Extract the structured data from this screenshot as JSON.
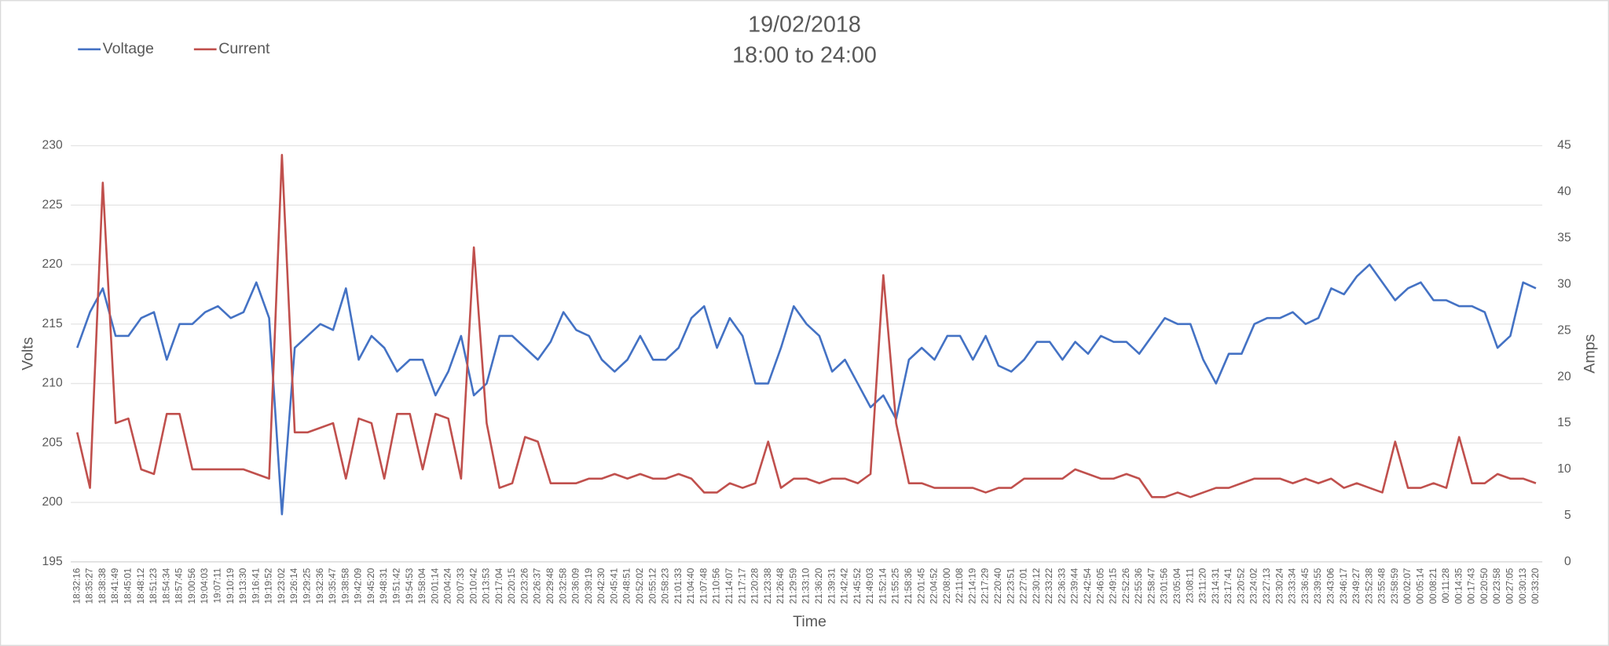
{
  "chart_data": {
    "type": "line",
    "title": "19/02/2018",
    "subtitle": "18:00 to 24:00",
    "x_label": "Time",
    "y_label": "Volts",
    "y2_label": "Amps",
    "ylim": [
      195,
      230
    ],
    "yticks": [
      195,
      200,
      205,
      210,
      215,
      220,
      225,
      230
    ],
    "y2lim": [
      0,
      45
    ],
    "y2ticks": [
      0,
      5,
      10,
      15,
      20,
      25,
      30,
      35,
      40,
      45
    ],
    "grid": true,
    "legend": "top-left",
    "categories": [
      "18:32:16",
      "18:35:27",
      "18:38:38",
      "18:41:49",
      "18:45:01",
      "18:48:12",
      "18:51:23",
      "18:54:34",
      "18:57:45",
      "19:00:56",
      "19:04:03",
      "19:07:11",
      "19:10:19",
      "19:13:30",
      "19:16:41",
      "19:19:52",
      "19:23:02",
      "19:26:14",
      "19:29:25",
      "19:32:36",
      "19:35:47",
      "19:38:58",
      "19:42:09",
      "19:45:20",
      "19:48:31",
      "19:51:42",
      "19:54:53",
      "19:58:04",
      "20:01:14",
      "20:04:24",
      "20:07:33",
      "20:10:42",
      "20:13:53",
      "20:17:04",
      "20:20:15",
      "20:23:26",
      "20:26:37",
      "20:29:48",
      "20:32:58",
      "20:36:09",
      "20:39:19",
      "20:42:30",
      "20:45:41",
      "20:48:51",
      "20:52:02",
      "20:55:12",
      "20:58:23",
      "21:01:33",
      "21:04:40",
      "21:07:48",
      "21:10:56",
      "21:14:07",
      "21:17:17",
      "21:20:28",
      "21:23:38",
      "21:26:48",
      "21:29:59",
      "21:33:10",
      "21:36:20",
      "21:39:31",
      "21:42:42",
      "21:45:52",
      "21:49:03",
      "21:52:14",
      "21:55:25",
      "21:58:36",
      "22:01:45",
      "22:04:52",
      "22:08:00",
      "22:11:08",
      "22:14:19",
      "22:17:29",
      "22:20:40",
      "22:23:51",
      "22:27:01",
      "22:30:12",
      "22:33:22",
      "22:36:33",
      "22:39:44",
      "22:42:54",
      "22:46:05",
      "22:49:15",
      "22:52:26",
      "22:55:36",
      "22:58:47",
      "23:01:56",
      "23:05:04",
      "23:08:11",
      "23:11:20",
      "23:14:31",
      "23:17:41",
      "23:20:52",
      "23:24:02",
      "23:27:13",
      "23:30:24",
      "23:33:34",
      "23:36:45",
      "23:39:55",
      "23:43:06",
      "23:46:17",
      "23:49:27",
      "23:52:38",
      "23:55:48",
      "23:58:59",
      "00:02:07",
      "00:05:14",
      "00:08:21",
      "00:11:28",
      "00:14:35",
      "00:17:43",
      "00:20:50",
      "00:23:58",
      "00:27:05",
      "00:30:13",
      "00:33:20"
    ],
    "series": [
      {
        "name": "Voltage",
        "color": "#4472c4",
        "axis": "y",
        "values": [
          213,
          216,
          218,
          214,
          214,
          215.5,
          216,
          212,
          215,
          215,
          216,
          216.5,
          215.5,
          216,
          218.5,
          215.5,
          199,
          213,
          214,
          215,
          214.5,
          218,
          212,
          214,
          213,
          211,
          212,
          212,
          209,
          211,
          214,
          209,
          210,
          214,
          214,
          213,
          212,
          213.5,
          216,
          214.5,
          214,
          212,
          211,
          212,
          214,
          212,
          212,
          213,
          215.5,
          216.5,
          213,
          215.5,
          214,
          210,
          210,
          213,
          216.5,
          215,
          214,
          211,
          212,
          210,
          208,
          209,
          207,
          212,
          213,
          212,
          214,
          214,
          212,
          214,
          211.5,
          211,
          212,
          213.5,
          213.5,
          212,
          213.5,
          212.5,
          214,
          213.5,
          213.5,
          212.5,
          214,
          215.5,
          215,
          215,
          212,
          210,
          212.5,
          212.5,
          215,
          215.5,
          215.5,
          216,
          215,
          215.5,
          218,
          217.5,
          219,
          220,
          218.5,
          217,
          218,
          218.5,
          217,
          217,
          216.5,
          216.5,
          216,
          213,
          214,
          218.5,
          218
        ]
      },
      {
        "name": "Current",
        "color": "#c0504d",
        "axis": "y2",
        "values": [
          14,
          8,
          41,
          15,
          15.5,
          10,
          9.5,
          16,
          16,
          10,
          10,
          10,
          10,
          10,
          9.5,
          9,
          44,
          14,
          14,
          14.5,
          15,
          9,
          15.5,
          15,
          9,
          16,
          16,
          10,
          16,
          15.5,
          9,
          34,
          15,
          8,
          8.5,
          13.5,
          13,
          8.5,
          8.5,
          8.5,
          9,
          9,
          9.5,
          9,
          9.5,
          9,
          9,
          9.5,
          9,
          7.5,
          7.5,
          8.5,
          8,
          8.5,
          13,
          8,
          9,
          9,
          8.5,
          9,
          9,
          8.5,
          9.5,
          31,
          15,
          8.5,
          8.5,
          8,
          8,
          8,
          8,
          7.5,
          8,
          8,
          9,
          9,
          9,
          9,
          10,
          9.5,
          9,
          9,
          9.5,
          9,
          7,
          7,
          7.5,
          7,
          7.5,
          8,
          8,
          8.5,
          9,
          9,
          9,
          8.5,
          9,
          8.5,
          9,
          8,
          8.5,
          8,
          7.5,
          13,
          8,
          8,
          8.5,
          8,
          13.5,
          8.5,
          8.5,
          9.5,
          9,
          9,
          8.5
        ]
      }
    ]
  }
}
